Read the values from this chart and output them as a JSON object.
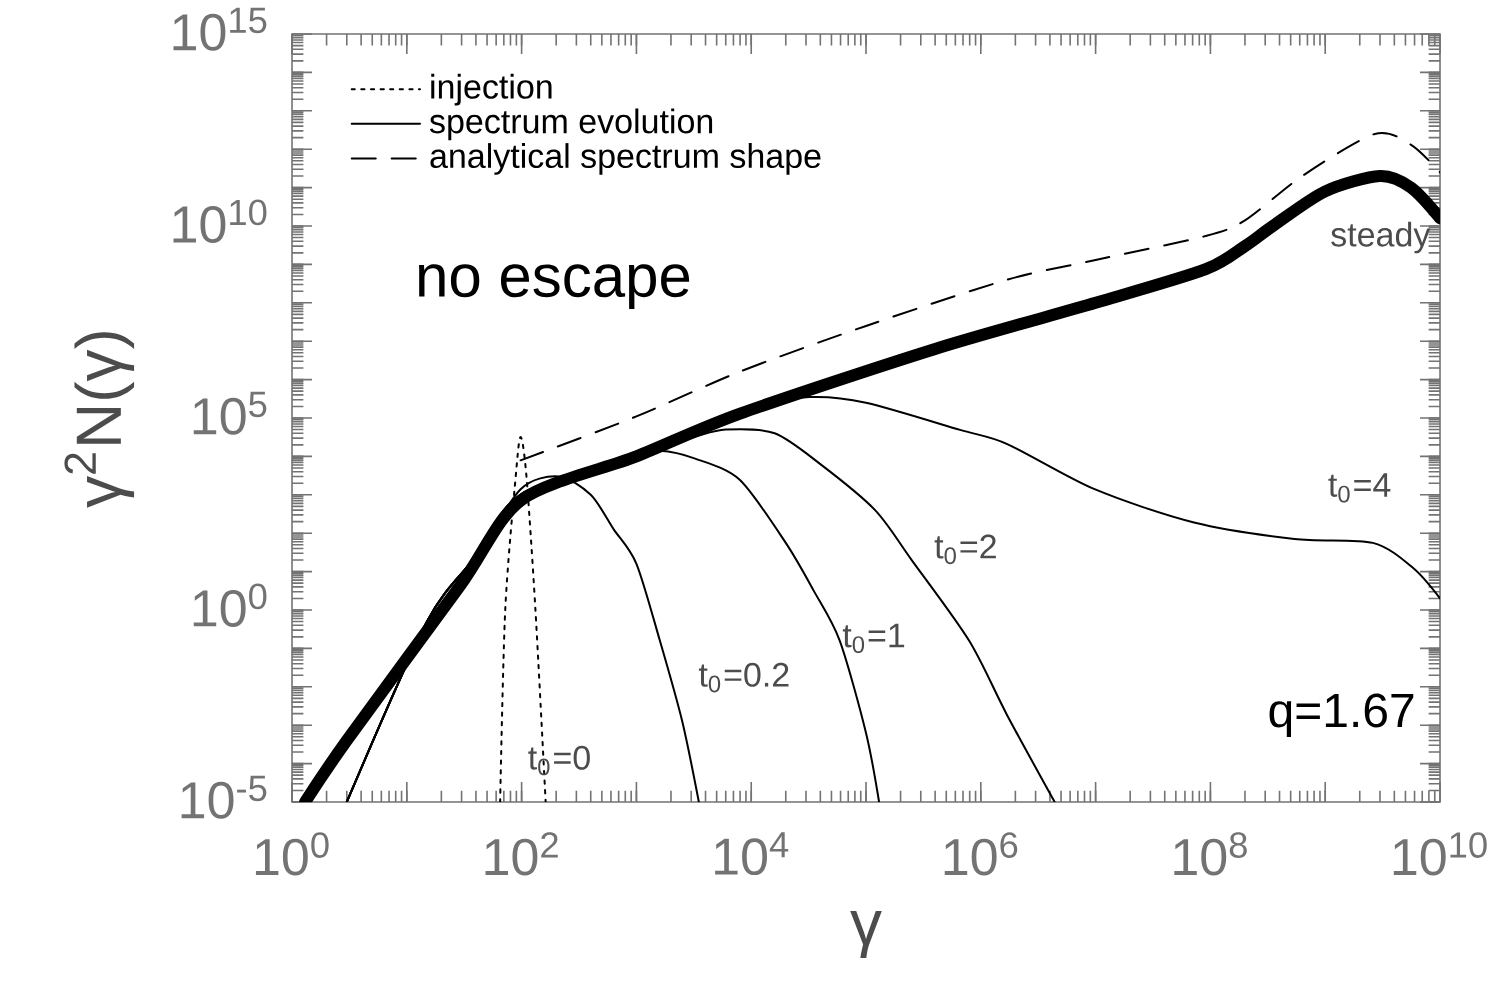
{
  "chart_data": {
    "type": "line",
    "xlabel": "γ",
    "ylabel": "γ$^{2}$N(γ)",
    "log": "xy",
    "xlim": [
      1,
      10000000000
    ],
    "ylim": [
      1e-05,
      1000000000000000
    ],
    "xticks": [
      {
        "value": 1,
        "label": "10$^{0}$"
      },
      {
        "value": 10,
        "label": null
      },
      {
        "value": 100,
        "label": "10$^{2}$"
      },
      {
        "value": 1000,
        "label": null
      },
      {
        "value": 10000,
        "label": "10$^{4}$"
      },
      {
        "value": 100000,
        "label": null
      },
      {
        "value": 1000000,
        "label": "10$^{6}$"
      },
      {
        "value": 10000000,
        "label": null
      },
      {
        "value": 100000000,
        "label": "10$^{8}$"
      },
      {
        "value": 1000000000,
        "label": null
      },
      {
        "value": 10000000000,
        "label": "10$^{10}$"
      }
    ],
    "yticks": [
      {
        "value": 1e-05,
        "label": "10$^{-5}$"
      },
      {
        "value": 0.0001,
        "label": null
      },
      {
        "value": 0.001,
        "label": null
      },
      {
        "value": 0.01,
        "label": null
      },
      {
        "value": 0.1,
        "label": null
      },
      {
        "value": 1,
        "label": "10$^{0}$"
      },
      {
        "value": 10,
        "label": null
      },
      {
        "value": 100,
        "label": null
      },
      {
        "value": 1000,
        "label": null
      },
      {
        "value": 10000,
        "label": null
      },
      {
        "value": 100000,
        "label": "10$^{5}$"
      },
      {
        "value": 1000000,
        "label": null
      },
      {
        "value": 10000000,
        "label": null
      },
      {
        "value": 100000000,
        "label": null
      },
      {
        "value": 1000000000,
        "label": null
      },
      {
        "value": 10000000000,
        "label": "10$^{10}$"
      },
      {
        "value": 100000000000,
        "label": null
      },
      {
        "value": 1000000000000,
        "label": null
      },
      {
        "value": 10000000000000,
        "label": null
      },
      {
        "value": 100000000000000,
        "label": null
      },
      {
        "value": 1000000000000000,
        "label": "10$^{15}$"
      }
    ],
    "grid": false,
    "legend": "top left",
    "marker": "none",
    "series": [
      {
        "name": "injection",
        "color": "#000000",
        "line_style": "dotted",
        "x": [
          65,
          72,
          89,
          98,
          110,
          132,
          162
        ],
        "values": [
          1e-05,
          1,
          3200,
          32000,
          3200,
          1,
          1e-05
        ]
      },
      {
        "name": "spectrum evolution",
        "color": "#000000",
        "line_style": "solid",
        "x": [
          3,
          15,
          40,
          98,
          210,
          400,
          630,
          1000,
          1600,
          2500,
          3500
        ],
        "values": [
          1e-05,
          0.5,
          25,
          1400,
          3000,
          1000,
          130,
          16,
          0.16,
          0.0013,
          1e-05
        ]
      },
      {
        "name": "analytical spectrum shape",
        "color": "#000000",
        "line_style": "dashed",
        "x": [
          98,
          1000,
          7900,
          100000,
          1700000,
          10000000,
          91000000,
          200000000,
          630000000,
          2700000000,
          5600000000,
          10000000000
        ],
        "values": [
          7900,
          110000,
          1600000,
          25000000,
          400000000,
          1300000000,
          5500000000,
          14000000000,
          200000000000,
          2500000000000,
          1300000000000,
          250000000000
        ]
      },
      {
        "color": "#000000",
        "line_style": "solid",
        "x": [
          3,
          15,
          40,
          98,
          320,
          1000,
          1600,
          3200,
          7900,
          20000,
          35000,
          59000,
          100000,
          130000
        ],
        "values": [
          1e-05,
          0.5,
          25,
          1000,
          3200,
          11000,
          14000,
          8900,
          2500,
          56,
          3.2,
          0.16,
          0.00063,
          1e-05
        ]
      },
      {
        "color": "#000000",
        "line_style": "solid",
        "x": [
          3,
          15,
          40,
          98,
          1000,
          3200,
          6000,
          16000,
          40000,
          120000,
          250000,
          790000,
          1700000,
          4400000
        ],
        "values": [
          1e-05,
          0.5,
          25,
          1000,
          11000,
          32000,
          50000,
          40000,
          6300,
          400,
          20,
          0.16,
          0.0018,
          1e-05
        ]
      },
      {
        "color": "#000000",
        "line_style": "solid",
        "x": [
          3,
          15,
          40,
          98,
          1000,
          10000,
          32000,
          100000,
          660000,
          1700000,
          9800000,
          72000000,
          540000000,
          2600000000,
          5900000000,
          10000000000
        ],
        "values": [
          1e-05,
          0.5,
          25,
          1000,
          11000,
          180000,
          350000,
          250000,
          49000,
          21000,
          1400,
          190,
          71,
          56,
          12,
          2
        ]
      },
      {
        "color": "#000000",
        "line_style": "solid",
        "x": [
          1.3,
          3,
          29,
          100,
          1000,
          8000,
          400000,
          10000000,
          90000000,
          200000000,
          350000000,
          1000000000,
          3000000000,
          5600000000,
          10000000000
        ],
        "values": [
          1e-05,
          0.0004,
          4.2,
          740,
          10000,
          130000,
          6300000,
          100000000,
          740000000,
          3000000000,
          10000000000,
          80000000000,
          200000000000,
          100000000000,
          16000000000
        ]
      }
    ],
    "annotations": [
      "no escape",
      "q=1.67",
      "t$_{0}$=0",
      "t$_{0}$=0.2",
      "t$_{0}$=1",
      "t$_{0}$=2",
      "t$_{0}$=4",
      "steady"
    ]
  }
}
